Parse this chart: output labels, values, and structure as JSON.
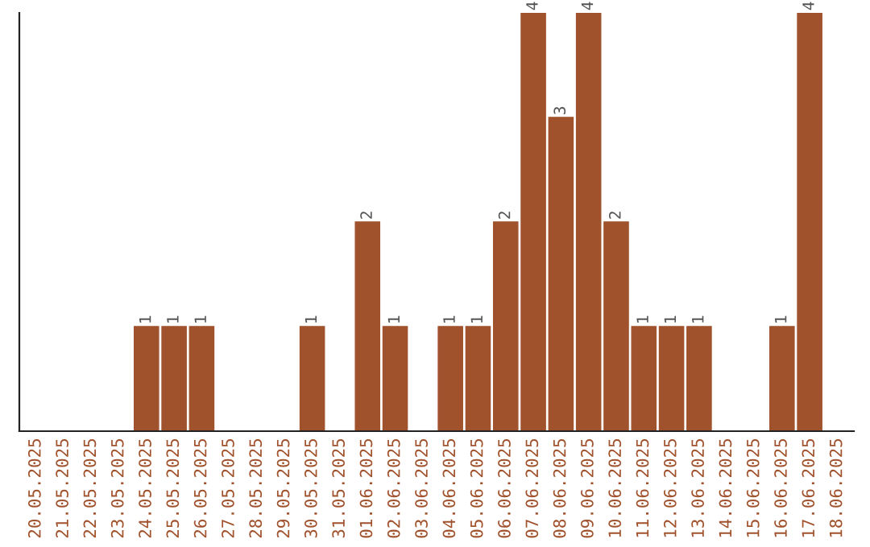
{
  "chart_data": {
    "type": "bar",
    "categories": [
      "20.05.2025",
      "21.05.2025",
      "22.05.2025",
      "23.05.2025",
      "24.05.2025",
      "25.05.2025",
      "26.05.2025",
      "27.05.2025",
      "28.05.2025",
      "29.05.2025",
      "30.05.2025",
      "31.05.2025",
      "01.06.2025",
      "02.06.2025",
      "03.06.2025",
      "04.06.2025",
      "05.06.2025",
      "06.06.2025",
      "07.06.2025",
      "08.06.2025",
      "09.06.2025",
      "10.06.2025",
      "11.06.2025",
      "12.06.2025",
      "13.06.2025",
      "14.06.2025",
      "15.06.2025",
      "16.06.2025",
      "17.06.2025",
      "18.06.2025"
    ],
    "values": [
      0,
      0,
      0,
      0,
      1,
      1,
      1,
      0,
      0,
      0,
      1,
      0,
      2,
      1,
      0,
      1,
      1,
      2,
      4,
      3,
      4,
      2,
      1,
      1,
      1,
      0,
      0,
      1,
      4,
      0
    ],
    "value_labels": [
      null,
      null,
      null,
      null,
      "1",
      "1",
      "1",
      null,
      null,
      null,
      "1",
      null,
      "2",
      "1",
      null,
      "1",
      "1",
      "2",
      "4",
      "3",
      "4",
      "2",
      "1",
      "1",
      "1",
      null,
      null,
      "1",
      "4",
      null
    ],
    "color": "#a0522d",
    "ylim": [
      0,
      4
    ],
    "tick_labels": "x",
    "grid": false
  }
}
